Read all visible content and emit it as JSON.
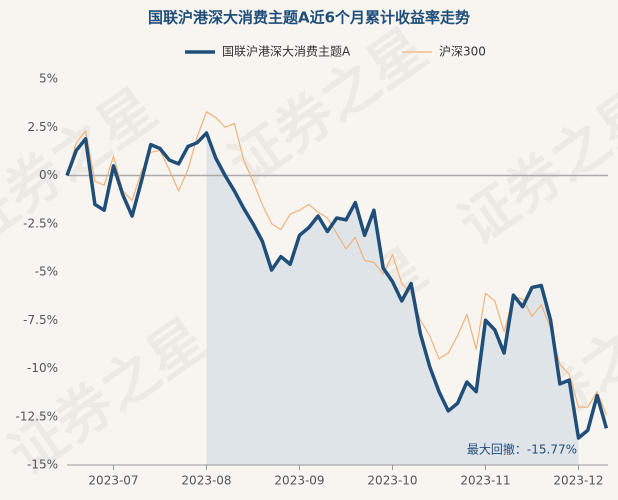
{
  "chart_data": {
    "type": "line",
    "title": "国联沪港深大消费主题A近6个月累计收益率走势",
    "watermark": "证券之星",
    "categories": [
      null,
      null,
      null,
      null,
      null,
      "2023-07",
      null,
      null,
      null,
      null,
      null,
      null,
      null,
      null,
      null,
      "2023-08",
      null,
      null,
      null,
      null,
      null,
      null,
      null,
      null,
      null,
      "2023-09",
      null,
      null,
      null,
      null,
      null,
      null,
      null,
      null,
      null,
      "2023-10",
      null,
      null,
      null,
      null,
      null,
      null,
      null,
      null,
      null,
      "2023-11",
      null,
      null,
      null,
      null,
      null,
      null,
      null,
      null,
      null,
      "2023-12",
      null,
      null,
      null
    ],
    "series": [
      {
        "name": "国联沪港深大消费主题A",
        "color": "#1f4e79",
        "width": 3.5,
        "values": [
          0,
          1.3,
          1.9,
          -1.5,
          -1.8,
          0.5,
          -1.0,
          -2.1,
          -0.3,
          1.6,
          1.4,
          0.8,
          0.6,
          1.5,
          1.7,
          2.2,
          0.9,
          0.0,
          -0.8,
          -1.7,
          -2.5,
          -3.4,
          -4.9,
          -4.2,
          -4.6,
          -3.1,
          -2.7,
          -2.1,
          -2.9,
          -2.2,
          -2.3,
          -1.4,
          -3.1,
          -1.8,
          -4.8,
          -5.5,
          -6.5,
          -5.6,
          -8.2,
          -9.9,
          -11.2,
          -12.2,
          -11.8,
          -10.7,
          -11.2,
          -7.5,
          -8.0,
          -9.2,
          -6.2,
          -6.8,
          -5.8,
          -5.7,
          -7.5,
          -10.8,
          -10.6,
          -13.6,
          -13.2,
          -11.4,
          -13.1
        ]
      },
      {
        "name": "沪深300",
        "color": "#f0b27a",
        "width": 1.2,
        "values": [
          0,
          1.7,
          2.3,
          -0.3,
          -0.5,
          1.0,
          -0.8,
          -1.3,
          0.2,
          1.2,
          1.3,
          0.3,
          -0.8,
          0.3,
          2.0,
          3.3,
          3.0,
          2.5,
          2.7,
          0.8,
          -0.3,
          -1.5,
          -2.5,
          -2.8,
          -2.0,
          -1.8,
          -1.5,
          -1.9,
          -2.2,
          -3.0,
          -3.8,
          -3.2,
          -4.4,
          -4.5,
          -5.1,
          -4.1,
          -5.6,
          -6.1,
          -7.5,
          -8.3,
          -9.5,
          -9.2,
          -8.3,
          -7.2,
          -9.0,
          -6.1,
          -6.5,
          -8.1,
          -6.3,
          -6.4,
          -7.3,
          -6.7,
          -7.9,
          -9.8,
          -10.3,
          -12.0,
          -12.0,
          -11.2,
          -12.4
        ]
      }
    ],
    "ylim": [
      -15,
      5
    ],
    "yticks": [
      {
        "value": -15,
        "label": "-15%"
      },
      {
        "value": -12.5,
        "label": "-12.5%"
      },
      {
        "value": -10,
        "label": "-10%"
      },
      {
        "value": -7.5,
        "label": "-7.5%"
      },
      {
        "value": -5,
        "label": "-5%"
      },
      {
        "value": -2.5,
        "label": "-2.5%"
      },
      {
        "value": 0,
        "label": "0%"
      },
      {
        "value": 2.5,
        "label": "2.5%"
      },
      {
        "value": 5,
        "label": "5%"
      }
    ],
    "zero_line": true,
    "drawdown": {
      "label": "最大回撤：-15.77%",
      "color": "#dfe4e8"
    }
  }
}
